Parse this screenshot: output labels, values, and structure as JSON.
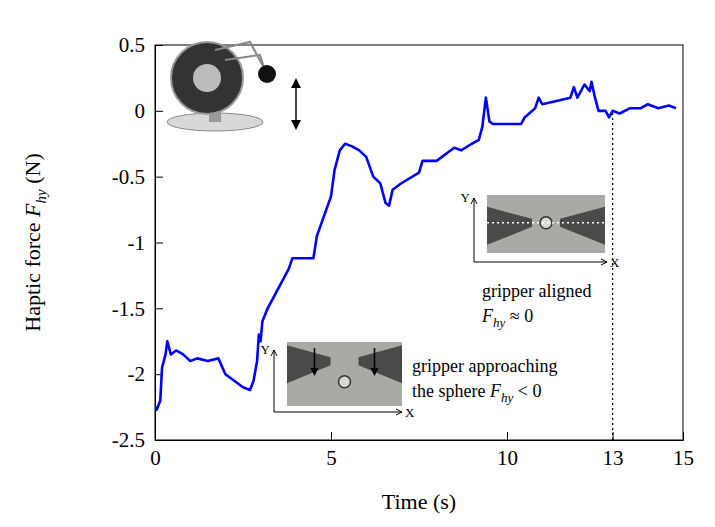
{
  "chart_data": {
    "type": "line",
    "color": "#0000ff",
    "x": [
      0,
      0.05,
      0.15,
      0.2,
      0.3,
      0.35,
      0.45,
      0.6,
      0.8,
      1.0,
      1.2,
      1.5,
      1.8,
      2.0,
      2.5,
      2.7,
      2.8,
      2.9,
      2.95,
      3.0,
      3.05,
      3.2,
      3.5,
      3.8,
      3.9,
      4.5,
      4.6,
      4.8,
      5.0,
      5.1,
      5.25,
      5.4,
      5.6,
      5.8,
      6.0,
      6.2,
      6.4,
      6.55,
      6.65,
      6.75,
      7.0,
      7.5,
      7.6,
      8.0,
      8.3,
      8.5,
      8.7,
      9.0,
      9.2,
      9.3,
      9.4,
      9.5,
      9.6,
      10.4,
      10.5,
      10.8,
      10.9,
      11.0,
      11.5,
      11.8,
      11.9,
      12.0,
      12.2,
      12.35,
      12.4,
      12.5,
      12.6,
      12.8,
      12.9,
      13.0,
      13.2,
      13.5,
      13.8,
      14.0,
      14.3,
      14.6,
      14.8
    ],
    "values": [
      -2.25,
      -2.27,
      -2.2,
      -1.95,
      -1.85,
      -1.75,
      -1.85,
      -1.82,
      -1.85,
      -1.9,
      -1.88,
      -1.9,
      -1.88,
      -2.0,
      -2.1,
      -2.12,
      -2.05,
      -1.9,
      -1.7,
      -1.75,
      -1.6,
      -1.5,
      -1.35,
      -1.2,
      -1.12,
      -1.12,
      -0.95,
      -0.8,
      -0.65,
      -0.45,
      -0.3,
      -0.25,
      -0.27,
      -0.3,
      -0.35,
      -0.5,
      -0.55,
      -0.7,
      -0.72,
      -0.6,
      -0.55,
      -0.47,
      -0.38,
      -0.38,
      -0.32,
      -0.28,
      -0.3,
      -0.25,
      -0.22,
      -0.12,
      0.1,
      -0.08,
      -0.1,
      -0.1,
      -0.05,
      0.02,
      0.1,
      0.05,
      0.08,
      0.1,
      0.18,
      0.1,
      0.2,
      0.15,
      0.22,
      0.1,
      0.0,
      0.0,
      -0.05,
      0.0,
      -0.02,
      0.02,
      0.02,
      0.05,
      0.02,
      0.04,
      0.02
    ],
    "xlim": [
      0,
      15
    ],
    "ylim": [
      -2.5,
      0.5
    ],
    "xticks": [
      0,
      5,
      10,
      13,
      15
    ],
    "yticks": [
      -2.5,
      -2,
      -1.5,
      -1,
      -0.5,
      0,
      0.5
    ],
    "xlabel": [
      {
        "text": "Time (s)"
      }
    ],
    "ylabel": [
      {
        "text": "Haptic force "
      },
      {
        "text": "F",
        "italic": true
      },
      {
        "text": "hy",
        "italic": true,
        "sub": true
      },
      {
        "text": " (N)"
      }
    ],
    "reference_lines": [
      {
        "x": 13,
        "y_end": 0,
        "line_style": "dotted"
      }
    ],
    "annotations": [
      {
        "lines": [
          [
            {
              "text": "gripper approaching"
            }
          ],
          [
            {
              "text": "the sphere "
            },
            {
              "text": "F",
              "italic": true
            },
            {
              "text": "hy",
              "italic": true,
              "sub": true
            },
            {
              "text": " < 0"
            }
          ]
        ],
        "inset": {
          "x_label": "X",
          "y_label": "Y"
        }
      },
      {
        "lines": [
          [
            {
              "text": "gripper aligned"
            }
          ],
          [
            {
              "text": "F",
              "italic": true
            },
            {
              "text": "hy",
              "italic": true,
              "sub": true
            },
            {
              "text": " ≈ 0"
            }
          ]
        ],
        "inset": {
          "x_label": "X",
          "y_label": "Y"
        }
      }
    ]
  }
}
